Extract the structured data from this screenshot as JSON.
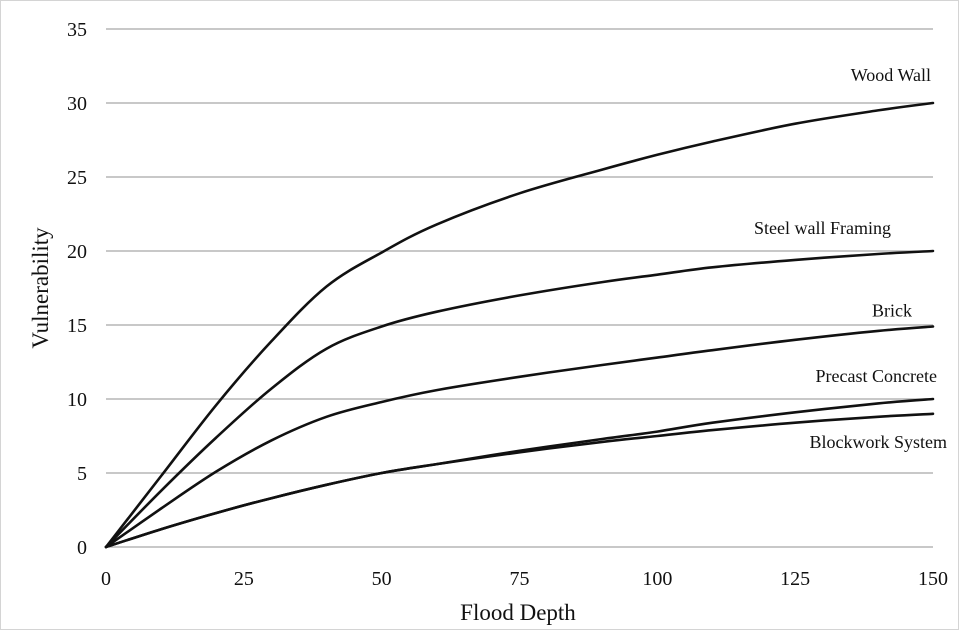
{
  "chart_data": {
    "type": "line",
    "xlabel": "Flood Depth",
    "ylabel": "Vulnerability",
    "xlim": [
      0,
      150
    ],
    "ylim": [
      0,
      35
    ],
    "x_ticks": [
      0,
      25,
      50,
      75,
      100,
      125,
      150
    ],
    "y_ticks": [
      0,
      5,
      10,
      15,
      20,
      25,
      30,
      35
    ],
    "grid": "horizontal",
    "legend": "inline labels near line ends",
    "series": [
      {
        "name": "Wood Wall",
        "x": [
          0,
          10,
          20,
          30,
          40,
          50,
          60,
          75,
          90,
          100,
          110,
          125,
          140,
          150
        ],
        "y": [
          0,
          4.8,
          9.6,
          13.9,
          17.6,
          19.9,
          21.8,
          23.9,
          25.5,
          26.5,
          27.4,
          28.6,
          29.5,
          30
        ]
      },
      {
        "name": "Steel wall Framing",
        "x": [
          0,
          10,
          20,
          30,
          40,
          50,
          60,
          75,
          90,
          100,
          110,
          125,
          140,
          150
        ],
        "y": [
          0,
          3.8,
          7.4,
          10.7,
          13.4,
          14.9,
          15.9,
          17.0,
          17.9,
          18.4,
          18.9,
          19.4,
          19.8,
          20
        ]
      },
      {
        "name": "Brick",
        "x": [
          0,
          10,
          20,
          30,
          40,
          50,
          60,
          75,
          90,
          100,
          110,
          125,
          140,
          150
        ],
        "y": [
          0,
          2.6,
          5.1,
          7.2,
          8.8,
          9.8,
          10.6,
          11.5,
          12.3,
          12.8,
          13.3,
          14.0,
          14.6,
          14.9
        ]
      },
      {
        "name": "Precast Concrete",
        "x": [
          0,
          10,
          20,
          30,
          40,
          50,
          60,
          75,
          90,
          100,
          110,
          125,
          140,
          150
        ],
        "y": [
          0,
          1.2,
          2.3,
          3.3,
          4.2,
          5.0,
          5.6,
          6.5,
          7.3,
          7.8,
          8.4,
          9.1,
          9.7,
          10
        ]
      },
      {
        "name": "Blockwork System",
        "x": [
          0,
          10,
          20,
          30,
          40,
          50,
          60,
          75,
          90,
          100,
          110,
          125,
          140,
          150
        ],
        "y": [
          0,
          1.2,
          2.3,
          3.3,
          4.2,
          5.0,
          5.6,
          6.4,
          7.1,
          7.5,
          7.9,
          8.4,
          8.8,
          9
        ]
      }
    ]
  }
}
